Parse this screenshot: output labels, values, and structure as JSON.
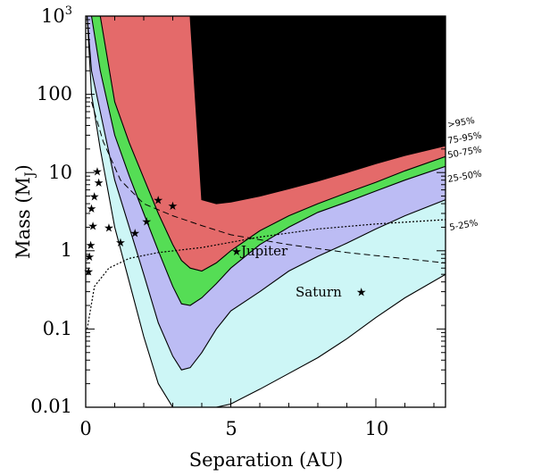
{
  "chart_data": {
    "type": "area",
    "xlabel": "Separation (AU)",
    "ylabel": "Mass (M",
    "ylabel_subscript": "J",
    "ylabel_close": ")",
    "xlim": [
      0,
      12.4
    ],
    "ylim": [
      0.01,
      1000
    ],
    "y_scale": "log",
    "x_ticks": [
      "0",
      "5",
      "10"
    ],
    "x_tick_values": [
      0,
      5,
      10
    ],
    "y_ticks": [
      "0.01",
      "0.1",
      "1",
      "10",
      "100"
    ],
    "y_tick_values": [
      0.01,
      0.1,
      1,
      10,
      100
    ],
    "y_top_tick_base": "10",
    "y_top_tick_exp": "3",
    "y_top_tick_value": 1000,
    "x_curve": [
      0.05,
      0.2,
      0.5,
      1.0,
      1.5,
      2.0,
      2.5,
      3.0,
      3.3,
      3.6,
      4.0,
      4.5,
      5.0,
      6.0,
      7.0,
      8.0,
      9.0,
      10.0,
      11.0,
      12.4
    ],
    "boundaries": [
      {
        "name": "95",
        "values": [
          1000,
          1000,
          1000,
          1000,
          1000,
          1000,
          1000,
          1000,
          1000,
          1000,
          4.5,
          4.0,
          4.2,
          5.0,
          6.2,
          7.8,
          10.0,
          13.0,
          16.5,
          22
        ]
      },
      {
        "name": "75",
        "values": [
          1000,
          1000,
          1000,
          80,
          24,
          8.5,
          3.0,
          1.2,
          0.75,
          0.6,
          0.55,
          0.7,
          1.0,
          1.8,
          2.8,
          4.0,
          5.5,
          7.5,
          10.5,
          16
        ]
      },
      {
        "name": "50",
        "values": [
          1000,
          1000,
          200,
          30,
          9,
          3.0,
          1.0,
          0.35,
          0.21,
          0.2,
          0.25,
          0.38,
          0.6,
          1.2,
          2.0,
          3.1,
          4.2,
          5.8,
          8.0,
          12
        ]
      },
      {
        "name": "25",
        "values": [
          1000,
          200,
          60,
          8,
          2.0,
          0.5,
          0.12,
          0.045,
          0.03,
          0.032,
          0.05,
          0.1,
          0.17,
          0.3,
          0.55,
          0.85,
          1.25,
          1.9,
          2.8,
          4.5
        ]
      },
      {
        "name": "05",
        "values": [
          1000,
          100,
          20,
          2.0,
          0.4,
          0.08,
          0.02,
          0.01,
          0.01,
          0.01,
          0.01,
          0.01,
          0.011,
          0.017,
          0.027,
          0.043,
          0.075,
          0.14,
          0.25,
          0.5
        ]
      }
    ],
    "bands": [
      {
        "label": ">95%",
        "color": "#000000",
        "upper": "top",
        "lower": "95"
      },
      {
        "label": "75-95%",
        "color": "#e46a6a",
        "upper": "95",
        "lower": "75"
      },
      {
        "label": "50-75%",
        "color": "#55dd55",
        "upper": "75",
        "lower": "50"
      },
      {
        "label": "25-50%",
        "color": "#bcbcf4",
        "upper": "50",
        "lower": "25"
      },
      {
        "label": "5-25%",
        "color": "#cdf6f6",
        "upper": "25",
        "lower": "05"
      }
    ],
    "planets": [
      {
        "name": "Jupiter",
        "x": 5.2,
        "y": 1.0
      },
      {
        "name": "Saturn",
        "x": 9.5,
        "y": 0.3
      }
    ],
    "stars": [
      {
        "x": 0.1,
        "y": 0.55
      },
      {
        "x": 0.13,
        "y": 0.85
      },
      {
        "x": 0.17,
        "y": 1.2
      },
      {
        "x": 0.2,
        "y": 3.5
      },
      {
        "x": 0.25,
        "y": 2.1
      },
      {
        "x": 0.3,
        "y": 5.0
      },
      {
        "x": 0.4,
        "y": 10.5
      },
      {
        "x": 0.45,
        "y": 7.5
      },
      {
        "x": 0.8,
        "y": 2.0
      },
      {
        "x": 1.2,
        "y": 1.3
      },
      {
        "x": 1.7,
        "y": 1.7
      },
      {
        "x": 2.1,
        "y": 2.4
      },
      {
        "x": 2.5,
        "y": 4.5
      },
      {
        "x": 3.0,
        "y": 3.8
      }
    ],
    "grid": false
  }
}
